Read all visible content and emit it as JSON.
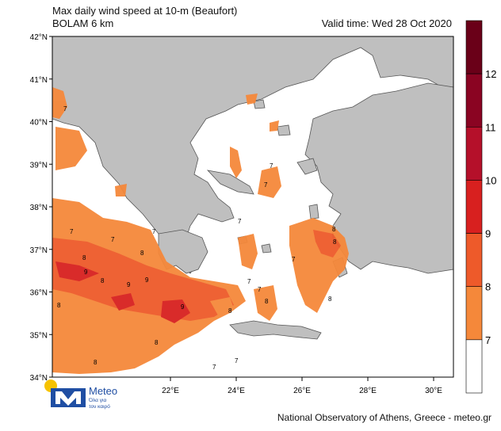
{
  "header": {
    "title_line1": "Max daily wind speed at 10-m (Beaufort)",
    "title_line2": "BOLAM 6 km",
    "valid_time": "Valid time: Wed 28 Oct 2020"
  },
  "axes": {
    "lat_labels": [
      "42°N",
      "41°N",
      "40°N",
      "39°N",
      "38°N",
      "37°N",
      "36°N",
      "35°N",
      "34°N"
    ],
    "lon_labels": [
      "22°E",
      "24°E",
      "26°E",
      "28°E",
      "30°E"
    ]
  },
  "colorbar": {
    "ticks": [
      "7",
      "8",
      "9",
      "10",
      "11",
      "12"
    ],
    "colors": [
      "#ffffff",
      "#f5883a",
      "#ee5a2a",
      "#d8201f",
      "#b5102a",
      "#8a0422",
      "#6a0018"
    ]
  },
  "contour_labels": [
    "7",
    "8",
    "9"
  ],
  "map_colors": {
    "land": "#bfbfbf",
    "sea": "#ffffff",
    "border": "#555555"
  },
  "footer": {
    "credit": "National Observatory of Athens, Greece - meteo.gr",
    "logo_text": "Meteo",
    "logo_subtext_1": "Όλα για",
    "logo_subtext_2": "τον καιρό"
  }
}
